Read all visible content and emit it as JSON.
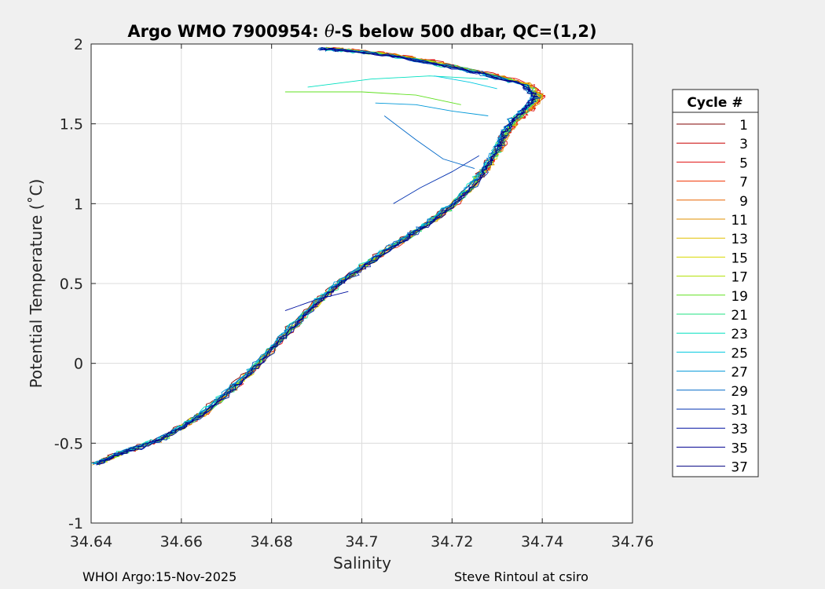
{
  "chart_data": {
    "type": "line",
    "title_prefix": "Argo WMO 7900954: ",
    "title_theta": "θ",
    "title_suffix": "-S below 500 dbar,  QC=(1,2)",
    "xlabel": "Salinity",
    "ylabel": "Potential Temperature (˚C)",
    "xlim": [
      34.64,
      34.76
    ],
    "ylim": [
      -1,
      2
    ],
    "x_ticks": [
      {
        "value": 34.64,
        "label": "34.64"
      },
      {
        "value": 34.66,
        "label": "34.66"
      },
      {
        "value": 34.68,
        "label": "34.68"
      },
      {
        "value": 34.7,
        "label": "34.7"
      },
      {
        "value": 34.72,
        "label": "34.72"
      },
      {
        "value": 34.74,
        "label": "34.74"
      },
      {
        "value": 34.76,
        "label": "34.76"
      }
    ],
    "y_ticks": [
      {
        "value": -1,
        "label": "-1"
      },
      {
        "value": -0.5,
        "label": "-0.5"
      },
      {
        "value": 0,
        "label": "0"
      },
      {
        "value": 0.5,
        "label": "0.5"
      },
      {
        "value": 1,
        "label": "1"
      },
      {
        "value": 1.5,
        "label": "1.5"
      },
      {
        "value": 2,
        "label": "2"
      }
    ],
    "grid": true,
    "legend": {
      "title": "Cycle #",
      "placement": "outside-right",
      "entries": [
        "1",
        "3",
        "5",
        "7",
        "9",
        "11",
        "13",
        "15",
        "17",
        "19",
        "21",
        "23",
        "25",
        "27",
        "29",
        "31",
        "33",
        "35",
        "37"
      ]
    },
    "series_colors": [
      "#800000",
      "#c80000",
      "#e01010",
      "#f03000",
      "#e86400",
      "#e09000",
      "#e0c000",
      "#d8d800",
      "#b0e000",
      "#60e020",
      "#20e080",
      "#00e0c0",
      "#00c8e0",
      "#0098d8",
      "#0068c8",
      "#0030b0",
      "#0010a0",
      "#000090",
      "#000080"
    ],
    "profile": [
      [
        34.641,
        -0.63
      ],
      [
        34.645,
        -0.58
      ],
      [
        34.65,
        -0.53
      ],
      [
        34.655,
        -0.48
      ],
      [
        34.66,
        -0.4
      ],
      [
        34.665,
        -0.31
      ],
      [
        34.67,
        -0.19
      ],
      [
        34.675,
        -0.06
      ],
      [
        34.68,
        0.09
      ],
      [
        34.685,
        0.24
      ],
      [
        34.69,
        0.38
      ],
      [
        34.695,
        0.5
      ],
      [
        34.7,
        0.6
      ],
      [
        34.705,
        0.7
      ],
      [
        34.71,
        0.79
      ],
      [
        34.715,
        0.88
      ],
      [
        34.72,
        0.99
      ],
      [
        34.725,
        1.13
      ],
      [
        34.728,
        1.25
      ],
      [
        34.73,
        1.35
      ],
      [
        34.731,
        1.43
      ],
      [
        34.733,
        1.52
      ],
      [
        34.736,
        1.6
      ],
      [
        34.738,
        1.67
      ],
      [
        34.735,
        1.75
      ],
      [
        34.725,
        1.82
      ],
      [
        34.715,
        1.88
      ],
      [
        34.705,
        1.93
      ],
      [
        34.695,
        1.96
      ],
      [
        34.69,
        1.97
      ]
    ],
    "outliers": [
      {
        "series": 9,
        "points": [
          [
            34.683,
            1.7
          ],
          [
            34.7,
            1.7
          ],
          [
            34.712,
            1.68
          ],
          [
            34.722,
            1.62
          ]
        ]
      },
      {
        "series": 11,
        "points": [
          [
            34.688,
            1.73
          ],
          [
            34.702,
            1.78
          ],
          [
            34.715,
            1.8
          ],
          [
            34.728,
            1.78
          ]
        ]
      },
      {
        "series": 12,
        "points": [
          [
            34.716,
            1.8
          ],
          [
            34.724,
            1.76
          ],
          [
            34.73,
            1.72
          ]
        ]
      },
      {
        "series": 14,
        "points": [
          [
            34.705,
            1.55
          ],
          [
            34.712,
            1.4
          ],
          [
            34.718,
            1.28
          ],
          [
            34.725,
            1.22
          ]
        ]
      },
      {
        "series": 15,
        "points": [
          [
            34.707,
            1.0
          ],
          [
            34.713,
            1.1
          ],
          [
            34.72,
            1.2
          ],
          [
            34.726,
            1.3
          ]
        ]
      },
      {
        "series": 16,
        "points": [
          [
            34.683,
            0.33
          ],
          [
            34.69,
            0.4
          ],
          [
            34.697,
            0.45
          ]
        ]
      },
      {
        "series": 13,
        "points": [
          [
            34.703,
            1.63
          ],
          [
            34.712,
            1.62
          ],
          [
            34.72,
            1.58
          ],
          [
            34.728,
            1.55
          ]
        ]
      }
    ]
  },
  "footer": {
    "left": "WHOI Argo:15-Nov-2025",
    "right": "Steve Rintoul at csiro"
  }
}
